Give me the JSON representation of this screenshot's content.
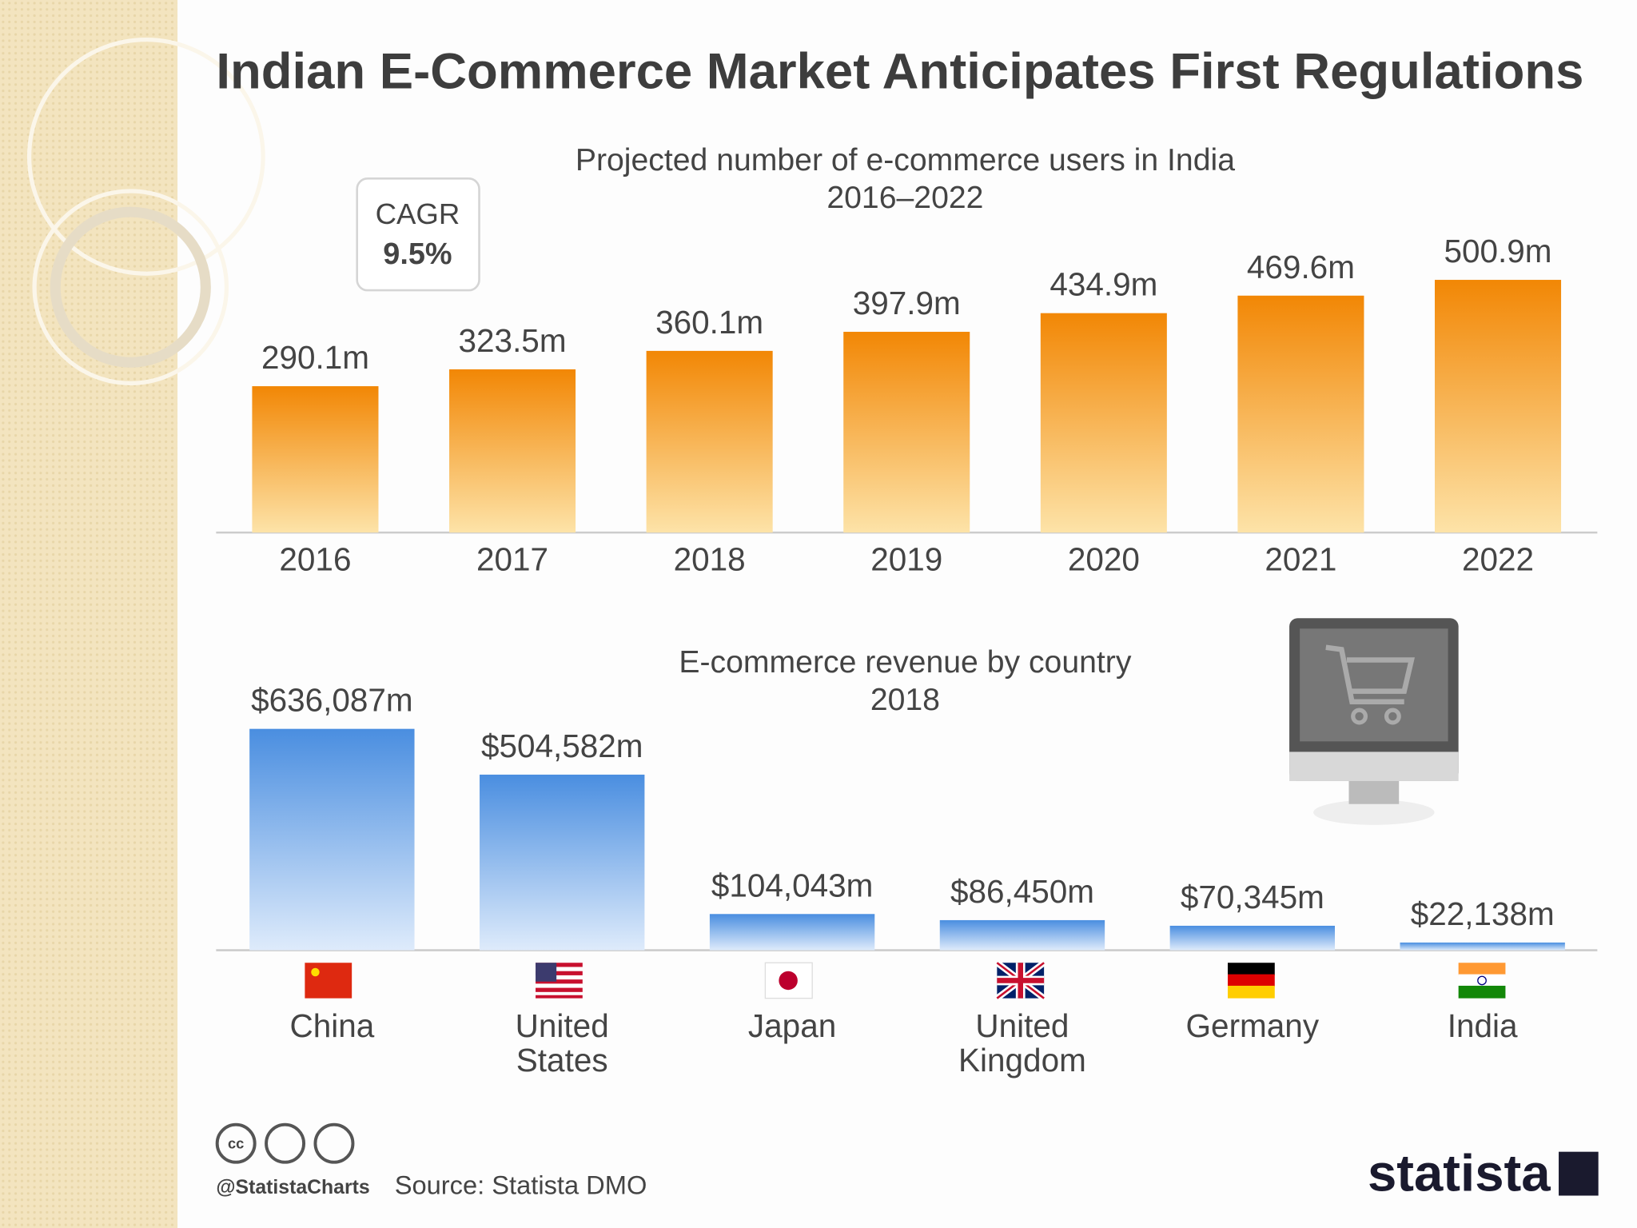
{
  "title": "Indian E-Commerce Market Anticipates First Regulations",
  "cagr": {
    "label": "CAGR",
    "value": "9.5%"
  },
  "chart_data": [
    {
      "type": "bar",
      "title": "Projected number of e-commerce users in India",
      "subtitle": "2016–2022",
      "categories": [
        "2016",
        "2017",
        "2018",
        "2019",
        "2020",
        "2021",
        "2022"
      ],
      "values": [
        290.1,
        323.5,
        360.1,
        397.9,
        434.9,
        469.6,
        500.9
      ],
      "value_labels": [
        "290.1m",
        "323.5m",
        "360.1m",
        "397.9m",
        "434.9m",
        "469.6m",
        "500.9m"
      ],
      "color": "#f28a0c"
    },
    {
      "type": "bar",
      "title": "E-commerce revenue by country",
      "subtitle": "2018",
      "categories": [
        "China",
        "United States",
        "Japan",
        "United Kingdom",
        "Germany",
        "India"
      ],
      "values": [
        636087,
        504582,
        104043,
        86450,
        70345,
        22138
      ],
      "value_labels": [
        "$636,087m",
        "$504,582m",
        "$104,043m",
        "$86,450m",
        "$70,345m",
        "$22,138m"
      ],
      "color": "#4a8ee0"
    }
  ],
  "credit": "@StatistaCharts",
  "source": "Source: Statista DMO",
  "brand": "statista"
}
